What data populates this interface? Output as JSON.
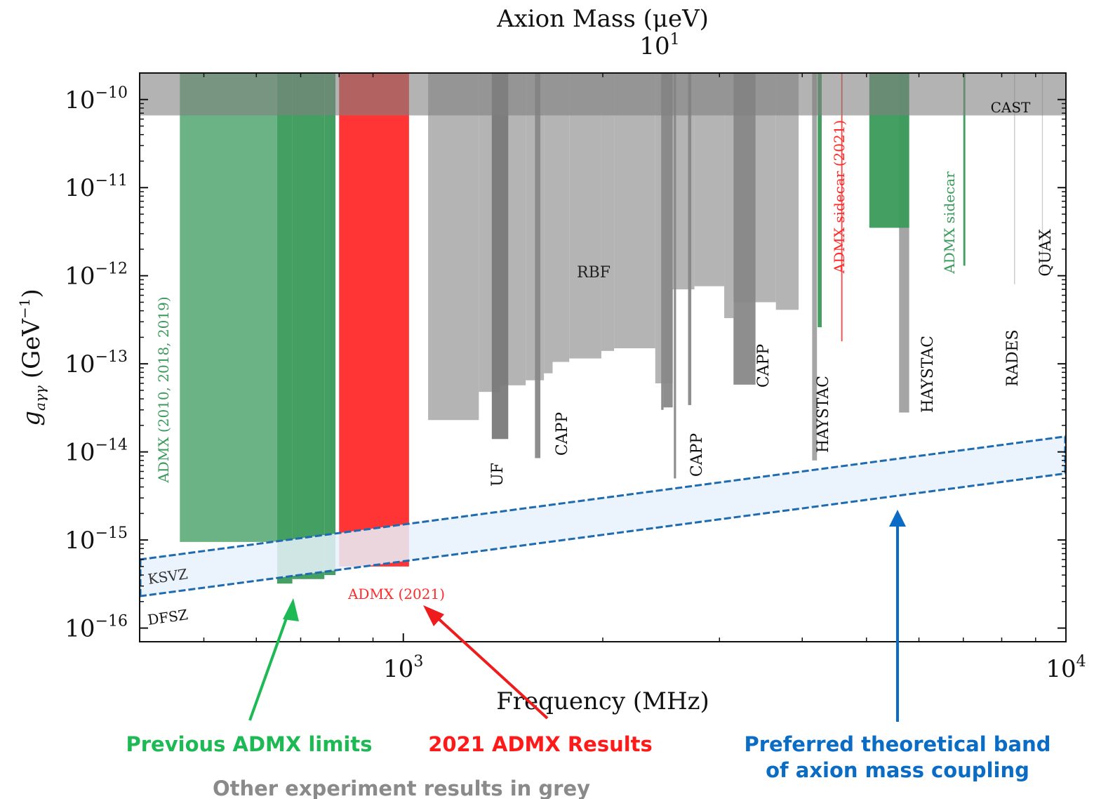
{
  "chart_data": {
    "type": "area",
    "title": "",
    "xlabel": "Frequency (MHz)",
    "ylabel_main": "g",
    "ylabel_sub": "aγγ",
    "ylabel_unit": "(GeV",
    "ylabel_unit_exp": "−1",
    "ylabel_unit_close": ")",
    "x_scale": "log",
    "y_scale": "log",
    "xlim": [
      400,
      10000
    ],
    "ylim": [
      7e-17,
      2e-10
    ],
    "x_ticks": [
      {
        "value": 1000,
        "base": "10",
        "exp": "3"
      },
      {
        "value": 10000,
        "base": "10",
        "exp": "4"
      }
    ],
    "y_ticks": [
      {
        "value": 1e-10,
        "base": "10",
        "exp": "−10"
      },
      {
        "value": 1e-11,
        "base": "10",
        "exp": "−11"
      },
      {
        "value": 1e-12,
        "base": "10",
        "exp": "−12"
      },
      {
        "value": 1e-13,
        "base": "10",
        "exp": "−13"
      },
      {
        "value": 1e-14,
        "base": "10",
        "exp": "−14"
      },
      {
        "value": 1e-15,
        "base": "10",
        "exp": "−15"
      },
      {
        "value": 1e-16,
        "base": "10",
        "exp": "−16"
      }
    ],
    "top_axis": {
      "label": "Axion Mass (μeV)",
      "tick_base": "10",
      "tick_exp": "1",
      "tick_value_ueV": 10
    },
    "cast": {
      "label": "CAST",
      "g_limit": 6.6e-11,
      "color": "#808080"
    },
    "band": {
      "upper_label": "KSVZ",
      "lower_label": "DFSZ",
      "upper": [
        {
          "f": 400,
          "g": 6e-16
        },
        {
          "f": 10000,
          "g": 1.5e-14
        }
      ],
      "lower": [
        {
          "f": 400,
          "g": 2.3e-16
        },
        {
          "f": 10000,
          "g": 5.7e-15
        }
      ],
      "fill": "#e8f2fb",
      "stroke": "#1f6bb0"
    },
    "series": [
      {
        "name": "ADMX (2010, 2018, 2019)",
        "color": "#3a9a5b",
        "regions": [
          {
            "f1": 460,
            "f2": 645,
            "g": 9.5e-16
          },
          {
            "f1": 645,
            "f2": 680,
            "g": 3.2e-16
          },
          {
            "f1": 680,
            "f2": 760,
            "g": 3.6e-16
          },
          {
            "f1": 760,
            "f2": 790,
            "g": 4e-16
          }
        ]
      },
      {
        "name": "ADMX (2021)",
        "color": "#ff2a2a",
        "regions": [
          {
            "f1": 800,
            "f2": 1020,
            "g": 5e-16
          }
        ]
      },
      {
        "name": "RBF",
        "color": "#b0b0b0",
        "regions": [
          {
            "f1": 1090,
            "f2": 1300,
            "g": 2.3e-14
          },
          {
            "f1": 1300,
            "f2": 1400,
            "g": 4.8e-14
          },
          {
            "f1": 1400,
            "f2": 1530,
            "g": 5.7e-14
          },
          {
            "f1": 1530,
            "f2": 1630,
            "g": 6.5e-14
          },
          {
            "f1": 1630,
            "f2": 1680,
            "g": 7.8e-14
          },
          {
            "f1": 1680,
            "f2": 1780,
            "g": 1.05e-13
          },
          {
            "f1": 1780,
            "f2": 1990,
            "g": 1.15e-13
          },
          {
            "f1": 1990,
            "f2": 2080,
            "g": 1.4e-13
          },
          {
            "f1": 2080,
            "f2": 2400,
            "g": 1.5e-13
          },
          {
            "f1": 2400,
            "f2": 2550,
            "g": 6e-14
          },
          {
            "f1": 2550,
            "f2": 2750,
            "g": 7e-13
          },
          {
            "f1": 2750,
            "f2": 3050,
            "g": 7.6e-13
          },
          {
            "f1": 3050,
            "f2": 3150,
            "g": 3.3e-13
          },
          {
            "f1": 3150,
            "f2": 3650,
            "g": 5e-13
          },
          {
            "f1": 3650,
            "f2": 3950,
            "g": 4.1e-13
          }
        ]
      },
      {
        "name": "UF",
        "color": "#7a7a7a",
        "regions": [
          {
            "f1": 1360,
            "f2": 1440,
            "g": 1.4e-14
          }
        ]
      },
      {
        "name": "CAPP",
        "color": "#888888",
        "regions": [
          {
            "f1": 1580,
            "f2": 1610,
            "g": 8.5e-15
          },
          {
            "f1": 2450,
            "f2": 2470,
            "g": 3e-14
          },
          {
            "f1": 2470,
            "f2": 2550,
            "g": 3.2e-14
          },
          {
            "f1": 2560,
            "f2": 2580,
            "g": 5e-15
          },
          {
            "f1": 2690,
            "f2": 2720,
            "g": 3.4e-14
          },
          {
            "f1": 3150,
            "f2": 3400,
            "g": 5.8e-14
          }
        ]
      },
      {
        "name": "HAYSTAC",
        "color": "#a0a0a0",
        "regions": [
          {
            "f1": 4140,
            "f2": 4210,
            "g": 8e-15
          },
          {
            "f1": 5600,
            "f2": 5800,
            "g": 2.8e-14
          }
        ]
      },
      {
        "name": "ADMX sidecar (2021)",
        "color": "#ff3a3a",
        "regions": [
          {
            "f1": 4580,
            "f2": 4600,
            "g": 1.8e-13
          }
        ]
      },
      {
        "name": "ADMX sidecar",
        "color": "#3a9a5b",
        "regions": [
          {
            "f1": 4220,
            "f2": 4280,
            "g": 2.6e-13
          },
          {
            "f1": 5050,
            "f2": 5800,
            "g": 3.5e-12
          },
          {
            "f1": 7000,
            "f2": 7050,
            "g": 1.3e-12
          }
        ]
      },
      {
        "name": "RADES",
        "color": "#c8c8c8",
        "regions": [
          {
            "f1": 8350,
            "f2": 8380,
            "g": 8e-13
          }
        ]
      },
      {
        "name": "QUAX",
        "color": "#c8c8c8",
        "regions": [
          {
            "f1": 9200,
            "f2": 9230,
            "g": 1.1e-12
          }
        ]
      }
    ],
    "labels": [
      {
        "text": "ADMX (2010, 2018, 2019)",
        "color": "#3a9a5b"
      },
      {
        "text": "ADMX (2021)",
        "color": "#ff2a2a"
      },
      {
        "text": "RBF",
        "color": "#222222"
      },
      {
        "text": "UF",
        "color": "#111111"
      },
      {
        "text": "CAPP",
        "color": "#111111"
      },
      {
        "text": "CAPP",
        "color": "#111111"
      },
      {
        "text": "CAPP",
        "color": "#111111"
      },
      {
        "text": "HAYSTAC",
        "color": "#111111"
      },
      {
        "text": "HAYSTAC",
        "color": "#111111"
      },
      {
        "text": "ADMX sidecar (2021)",
        "color": "#ff2a2a"
      },
      {
        "text": "ADMX sidecar",
        "color": "#3a9a5b"
      },
      {
        "text": "RADES",
        "color": "#111111"
      },
      {
        "text": "QUAX",
        "color": "#111111"
      }
    ]
  },
  "annotations": {
    "previous": {
      "text": "Previous ADMX limits",
      "color": "#1db954"
    },
    "results": {
      "text": "2021 ADMX Results",
      "color": "#ff1a1a"
    },
    "band_line1": {
      "text": "Preferred theoretical band",
      "color": "#0a6cc4"
    },
    "band_line2": {
      "text": "of axion mass coupling",
      "color": "#0a6cc4"
    },
    "grey": {
      "text": "Other experiment results in grey",
      "color": "#8a8a8a"
    }
  }
}
